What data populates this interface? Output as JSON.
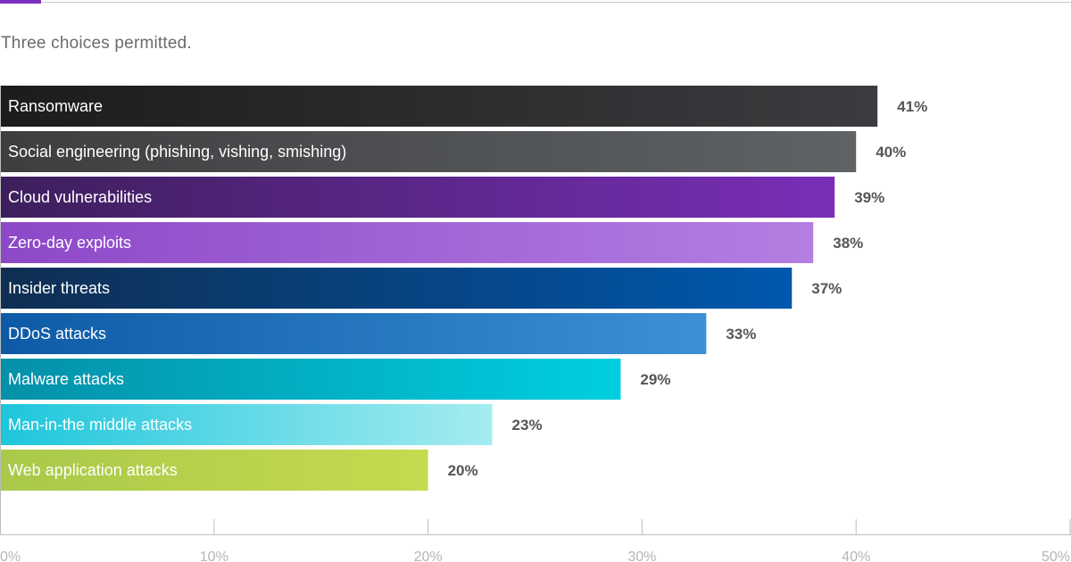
{
  "subtitle": "Three choices permitted.",
  "colors": {
    "accent": "#7b2fbf",
    "axis": "#bdbdbd"
  },
  "chart_data": {
    "type": "bar",
    "orientation": "horizontal",
    "categories": [
      "Ransomware",
      "Social engineering (phishing, vishing, smishing)",
      "Cloud vulnerabilities",
      "Zero-day exploits",
      "Insider threats",
      "DDoS attacks",
      "Malware attacks",
      "Man-in-the middle attacks",
      "Web application attacks"
    ],
    "values": [
      41,
      40,
      39,
      38,
      37,
      33,
      29,
      23,
      20
    ],
    "value_labels": [
      "41%",
      "40%",
      "39%",
      "38%",
      "37%",
      "33%",
      "29%",
      "23%",
      "20%"
    ],
    "bar_colors": [
      [
        "#1c1c1c",
        "#3a3c3f"
      ],
      [
        "#3e3e40",
        "#5f6366"
      ],
      [
        "#3d1f5c",
        "#7a2eb8"
      ],
      [
        "#8d48c8",
        "#b47ee2"
      ],
      [
        "#0f2e52",
        "#0058ae"
      ],
      [
        "#0e5aa6",
        "#3d90d6"
      ],
      [
        "#0590a8",
        "#00cfe0"
      ],
      [
        "#1ec6dc",
        "#a5ecf0"
      ],
      [
        "#a9c94a",
        "#c6da4f"
      ]
    ],
    "x_ticks": [
      0,
      10,
      20,
      30,
      40,
      50
    ],
    "x_tick_labels": [
      "0%",
      "10%",
      "20%",
      "30%",
      "40%",
      "50%"
    ],
    "xlim": [
      0,
      50
    ],
    "title": "",
    "xlabel": "",
    "ylabel": "",
    "grid": false
  }
}
